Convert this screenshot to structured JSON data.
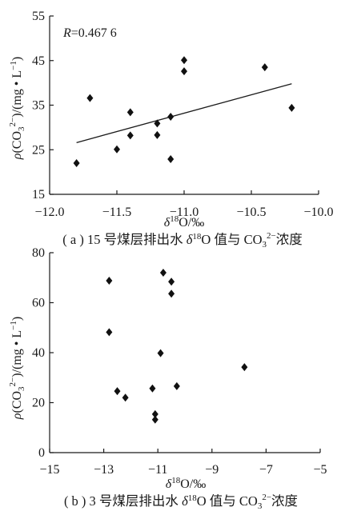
{
  "chart_data": [
    {
      "type": "scatter",
      "caption_parts": [
        "( a ) 15 号煤层排出水 ",
        "δ",
        "18",
        "O 值与 CO",
        "3",
        "2−",
        "浓度"
      ],
      "annotation_parts": [
        "R",
        "=0.467 6"
      ],
      "xlabel_parts": [
        "δ",
        "18",
        "O/‰"
      ],
      "ylabel_parts": [
        "ρ",
        "(CO",
        "3",
        "2−",
        ")/(mg • L",
        "−1",
        ")"
      ],
      "xlim": [
        -12.0,
        -10.0
      ],
      "ylim": [
        15,
        55
      ],
      "xticks": [
        -12.0,
        -11.5,
        -11.0,
        -10.5,
        -10.0
      ],
      "xtick_labels": [
        "−12.0",
        "−11.5",
        "−11.0",
        "−10.5",
        "−10.0"
      ],
      "yticks": [
        15,
        25,
        35,
        45,
        55
      ],
      "ytick_labels": [
        "15",
        "25",
        "35",
        "45",
        "55"
      ],
      "points": [
        {
          "x": -11.8,
          "y": 22.0
        },
        {
          "x": -11.7,
          "y": 36.6
        },
        {
          "x": -11.5,
          "y": 25.1
        },
        {
          "x": -11.4,
          "y": 33.4
        },
        {
          "x": -11.4,
          "y": 28.2
        },
        {
          "x": -11.2,
          "y": 30.9
        },
        {
          "x": -11.2,
          "y": 28.3
        },
        {
          "x": -11.1,
          "y": 32.4
        },
        {
          "x": -11.1,
          "y": 22.9
        },
        {
          "x": -11.0,
          "y": 45.1
        },
        {
          "x": -11.0,
          "y": 42.6
        },
        {
          "x": -10.4,
          "y": 43.5
        },
        {
          "x": -10.2,
          "y": 34.4
        }
      ],
      "trendline": {
        "x": [
          -11.8,
          -10.2
        ],
        "y": [
          26.6,
          39.8
        ]
      }
    },
    {
      "type": "scatter",
      "caption_parts": [
        "( b ) 3 号煤层排出水 ",
        "δ",
        "18",
        "O 值与 CO",
        "3",
        "2−",
        "浓度"
      ],
      "xlabel_parts": [
        "δ",
        "18",
        "O/‰"
      ],
      "ylabel_parts": [
        "ρ",
        "(CO",
        "3",
        "2−",
        ")/(mg • L",
        "−1",
        ")"
      ],
      "xlim": [
        -15,
        -5
      ],
      "ylim": [
        0,
        80
      ],
      "xticks": [
        -15,
        -13,
        -11,
        -9,
        -7,
        -5
      ],
      "xtick_labels": [
        "−15",
        "−13",
        "−11",
        "−9",
        "−7",
        "−5"
      ],
      "yticks": [
        0,
        20,
        40,
        60,
        80
      ],
      "ytick_labels": [
        "0",
        "20",
        "40",
        "60",
        "80"
      ],
      "points": [
        {
          "x": -12.8,
          "y": 68.8
        },
        {
          "x": -12.8,
          "y": 48.2
        },
        {
          "x": -12.5,
          "y": 24.6
        },
        {
          "x": -12.2,
          "y": 22.0
        },
        {
          "x": -11.2,
          "y": 25.7
        },
        {
          "x": -11.1,
          "y": 15.4
        },
        {
          "x": -11.1,
          "y": 13.2
        },
        {
          "x": -10.9,
          "y": 39.8
        },
        {
          "x": -10.8,
          "y": 72.0
        },
        {
          "x": -10.5,
          "y": 68.4
        },
        {
          "x": -10.5,
          "y": 63.6
        },
        {
          "x": -10.3,
          "y": 26.6
        },
        {
          "x": -7.8,
          "y": 34.2
        }
      ]
    }
  ]
}
